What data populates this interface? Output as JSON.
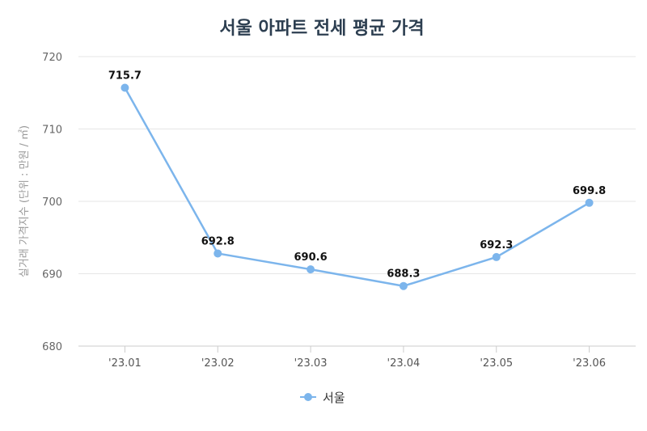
{
  "chart_data": {
    "type": "line",
    "title": "서울 아파트 전세 평균 가격",
    "ylabel": "실거래 가격지수 (단위 : 만원 / ㎡)",
    "xlabel": "",
    "categories": [
      "'23.01",
      "'23.02",
      "'23.03",
      "'23.04",
      "'23.05",
      "'23.06"
    ],
    "series": [
      {
        "name": "서울",
        "values": [
          715.7,
          692.8,
          690.6,
          688.3,
          692.3,
          699.8
        ],
        "labels": [
          "715.7",
          "692.8",
          "690.6",
          "688.3",
          "692.3",
          "699.8"
        ],
        "color": "#7cb5ec"
      }
    ],
    "ylim": [
      680,
      720
    ],
    "yticks": [
      "680",
      "690",
      "700",
      "710",
      "720"
    ],
    "grid": true,
    "legend": "bottom-center"
  }
}
